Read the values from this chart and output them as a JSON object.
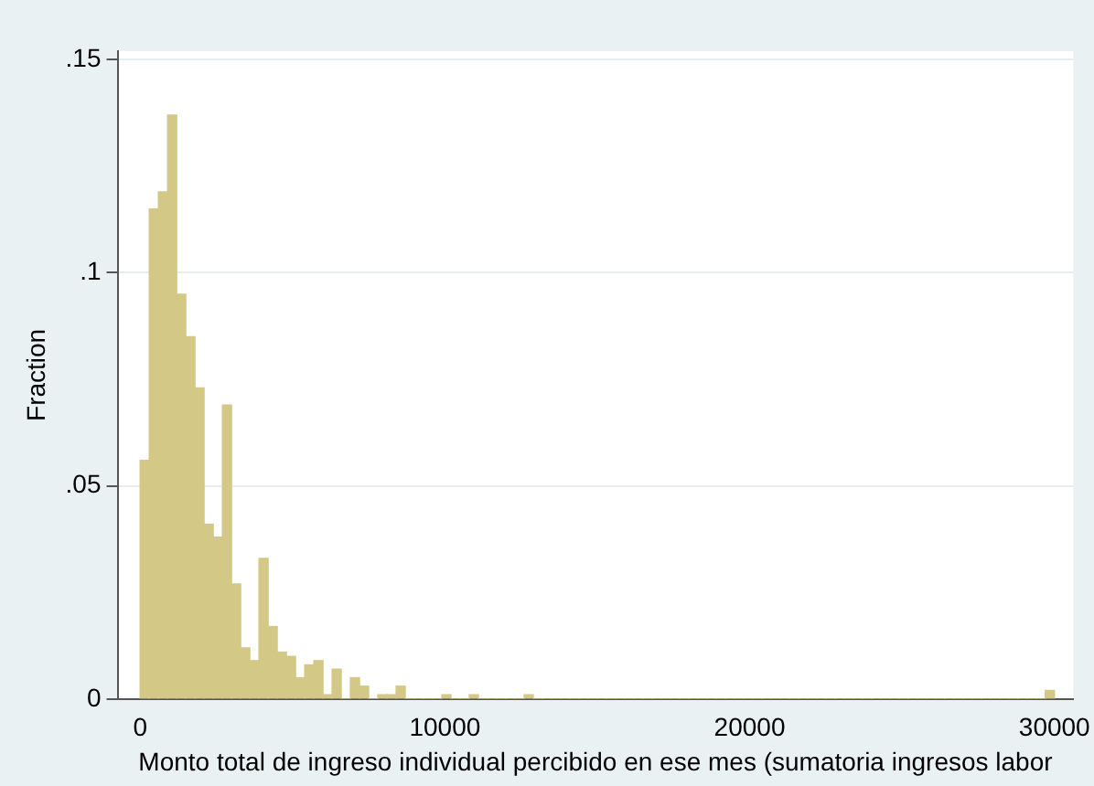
{
  "chart_data": {
    "type": "histogram",
    "xlabel": "Monto total de ingreso individual percibido en ese mes (sumatoria ingresos labor",
    "ylabel": "Fraction",
    "bins": [
      0,
      300,
      600,
      900,
      1200,
      1500,
      1800,
      2100,
      2400,
      2700,
      3000,
      3300,
      3600,
      3900,
      4200,
      4500,
      4800,
      5100,
      5400,
      5700,
      6000,
      6300,
      6600,
      6900,
      7200,
      7500,
      7800,
      8100,
      8400,
      8700,
      9000,
      9300,
      9600,
      9900,
      10200,
      10500,
      10800,
      11100,
      11400,
      11700,
      12000,
      12300,
      12600,
      12900,
      13200,
      13500,
      13800,
      14100,
      14400,
      14700,
      15000,
      15300,
      15600,
      15900,
      16200,
      16500,
      16800,
      17100,
      17400,
      17700,
      18000,
      18300,
      18600,
      18900,
      19200,
      19500,
      19800,
      20100,
      20400,
      20700,
      21000,
      21300,
      21600,
      21900,
      22200,
      22500,
      22800,
      23100,
      23400,
      23700,
      24000,
      24300,
      24600,
      24900,
      25200,
      25500,
      25800,
      26100,
      26400,
      26700,
      27000,
      27300,
      27600,
      27900,
      28200,
      28500,
      28800,
      29100,
      29400,
      29700,
      30000
    ],
    "values": [
      0.056,
      0.115,
      0.119,
      0.137,
      0.095,
      0.085,
      0.073,
      0.041,
      0.038,
      0.069,
      0.027,
      0.012,
      0.009,
      0.033,
      0.017,
      0.011,
      0.01,
      0.005,
      0.008,
      0.009,
      0.001,
      0.007,
      0,
      0.005,
      0.003,
      0,
      0.001,
      0.001,
      0.003,
      0,
      0,
      0,
      0,
      0.001,
      0,
      0,
      0.001,
      0,
      0,
      0,
      0,
      0,
      0.001,
      0,
      0,
      0,
      0,
      0,
      0,
      0,
      0,
      0,
      0,
      0,
      0,
      0,
      0,
      0,
      0,
      0,
      0,
      0,
      0,
      0,
      0,
      0,
      0,
      0,
      0,
      0,
      0,
      0,
      0,
      0,
      0,
      0,
      0,
      0,
      0,
      0,
      0,
      0,
      0,
      0,
      0,
      0,
      0,
      0,
      0,
      0,
      0,
      0,
      0,
      0,
      0,
      0,
      0,
      0,
      0,
      0.002
    ],
    "color": "#d3c886",
    "xlim": [
      -740,
      30620
    ],
    "ylim": [
      0,
      0.152
    ],
    "xticks": [
      0,
      10000,
      20000,
      30000
    ],
    "yticks": [
      {
        "value": 0,
        "label": "0"
      },
      {
        "value": 0.05,
        "label": ".05"
      },
      {
        "value": 0.1,
        "label": ".1"
      },
      {
        "value": 0.15,
        "label": ".15"
      }
    ],
    "grid": "y",
    "legend": false
  }
}
